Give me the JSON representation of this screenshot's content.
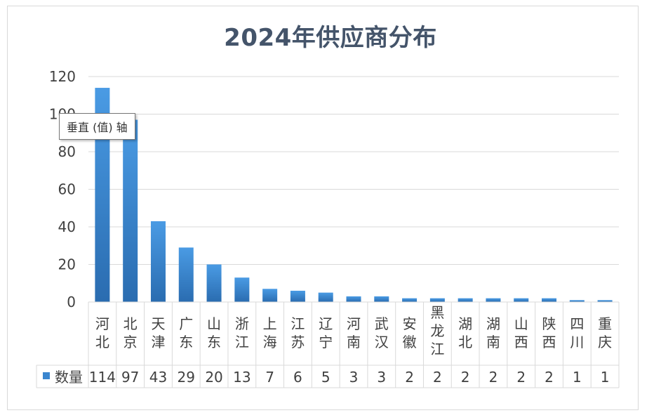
{
  "chart_data": {
    "type": "bar",
    "title": "2024年供应商分布",
    "categories": [
      "河北",
      "北京",
      "天津",
      "广东",
      "山东",
      "浙江",
      "上海",
      "江苏",
      "辽宁",
      "河南",
      "武汉",
      "安徽",
      "黑龙江",
      "湖北",
      "湖南",
      "山西",
      "陕西",
      "四川",
      "重庆"
    ],
    "series": [
      {
        "name": "数量",
        "values": [
          114,
          97,
          43,
          29,
          20,
          13,
          7,
          6,
          5,
          3,
          3,
          2,
          2,
          2,
          2,
          2,
          2,
          1,
          1
        ],
        "color": "#3a86cf"
      }
    ],
    "ylim": [
      0,
      120
    ],
    "yticks": [
      0,
      20,
      40,
      60,
      80,
      100,
      120
    ],
    "grid": true,
    "legend": "data-table-left",
    "data_table": true
  },
  "tooltip": {
    "text": "垂直 (值) 轴"
  },
  "colors": {
    "title": "#44546a",
    "bar_top": "#4a9be4",
    "bar_bottom": "#2a6cb0",
    "grid": "#d9d9d9"
  }
}
